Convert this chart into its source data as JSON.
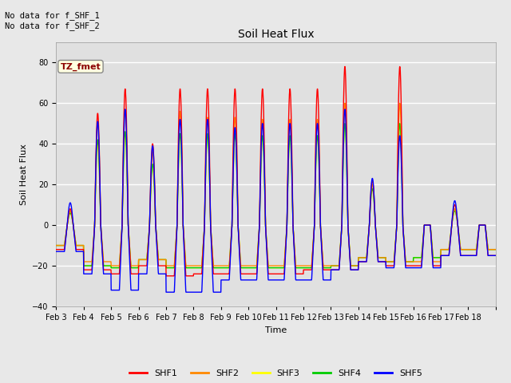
{
  "title": "Soil Heat Flux",
  "xlabel": "Time",
  "ylabel": "Soil Heat Flux",
  "ylim": [
    -40,
    90
  ],
  "yticks": [
    -40,
    -20,
    0,
    20,
    40,
    60,
    80
  ],
  "fig_bg": "#e8e8e8",
  "plot_bg": "#e0e0e0",
  "annotation_text": "No data for f_SHF_1\nNo data for f_SHF_2",
  "box_label": "TZ_fmet",
  "colors": [
    "#ff0000",
    "#ff8800",
    "#ffff00",
    "#00cc00",
    "#0000ff"
  ],
  "legend_labels": [
    "SHF1",
    "SHF2",
    "SHF3",
    "SHF4",
    "SHF5"
  ],
  "x_tick_labels": [
    "Feb 3",
    "Feb 4",
    "Feb 5",
    "Feb 6",
    "Feb 7",
    "Feb 8",
    "Feb 9",
    "Feb 10",
    "Feb 11",
    "Feb 12",
    "Feb 13",
    "Feb 14",
    "Feb 15",
    "Feb 16",
    "Feb 17",
    "Feb 18"
  ],
  "num_days": 16,
  "ppd": 144,
  "shf1_day_peaks": [
    8,
    55,
    67,
    40,
    67,
    67,
    67,
    67,
    67,
    67,
    78,
    22,
    78,
    0,
    10,
    0
  ],
  "shf2_day_peaks": [
    7,
    50,
    56,
    36,
    56,
    53,
    53,
    52,
    52,
    52,
    60,
    20,
    60,
    0,
    8,
    0
  ],
  "shf3_day_peaks": [
    6,
    40,
    45,
    30,
    44,
    45,
    45,
    44,
    44,
    44,
    50,
    18,
    50,
    0,
    7,
    0
  ],
  "shf4_day_peaks": [
    6,
    42,
    46,
    30,
    45,
    45,
    45,
    44,
    44,
    44,
    50,
    18,
    50,
    0,
    7,
    0
  ],
  "shf5_day_peaks": [
    11,
    51,
    57,
    39,
    52,
    52,
    48,
    50,
    50,
    50,
    57,
    23,
    44,
    0,
    12,
    0
  ],
  "shf1_neg": [
    -12,
    -22,
    -24,
    -20,
    -25,
    -24,
    -24,
    -24,
    -24,
    -22,
    -22,
    -18,
    -20,
    -20,
    -15,
    -15
  ],
  "shf2_neg": [
    -10,
    -18,
    -20,
    -17,
    -20,
    -20,
    -20,
    -20,
    -20,
    -20,
    -20,
    -16,
    -18,
    -18,
    -12,
    -12
  ],
  "shf3_neg": [
    -10,
    -20,
    -21,
    -17,
    -21,
    -21,
    -21,
    -21,
    -21,
    -21,
    -20,
    -16,
    -18,
    -16,
    -12,
    -12
  ],
  "shf4_neg": [
    -10,
    -20,
    -21,
    -17,
    -21,
    -21,
    -21,
    -21,
    -21,
    -21,
    -20,
    -16,
    -18,
    -16,
    -12,
    -12
  ],
  "shf5_neg": [
    -13,
    -24,
    -32,
    -24,
    -33,
    -33,
    -27,
    -27,
    -27,
    -27,
    -22,
    -18,
    -21,
    -21,
    -15,
    -15
  ]
}
